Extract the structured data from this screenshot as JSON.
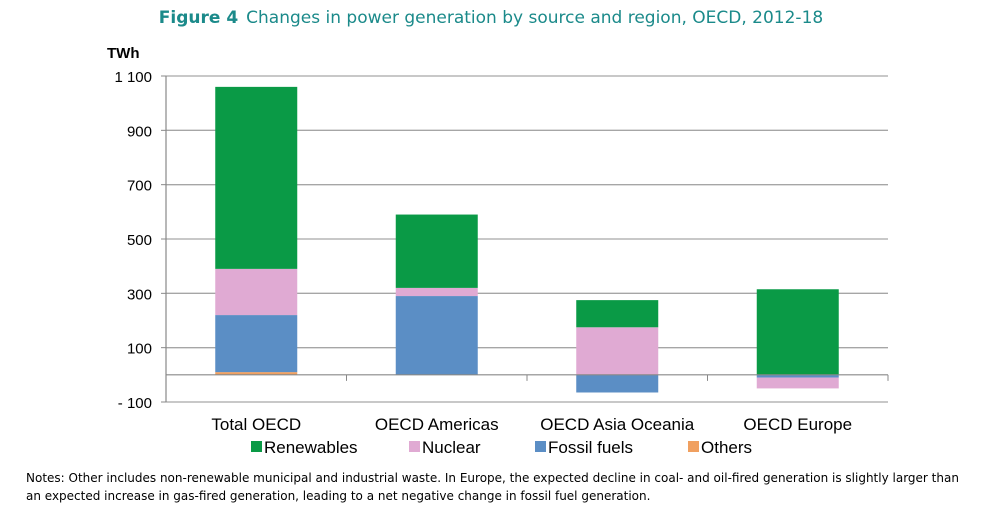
{
  "figure": {
    "number": "Figure 4",
    "title": "Changes in power generation by source and region, OECD, 2012-18"
  },
  "notes": "Notes: Other includes non-renewable municipal and industrial waste. In Europe, the expected decline in coal- and oil-fired generation is slightly larger than an expected increase in gas-fired generation, leading to a net negative change in fossil fuel generation.",
  "colors": {
    "renewables": "#0a9a46",
    "nuclear": "#e0aad3",
    "fossil": "#5b8ec5",
    "others": "#f0a060"
  },
  "chart_data": {
    "type": "bar",
    "stacked": true,
    "ylabel": "TWh",
    "ylim": [
      -100,
      1100
    ],
    "yticks": [
      -100,
      100,
      300,
      500,
      700,
      900,
      1100
    ],
    "ytick_labels": [
      "- 100",
      "100",
      "300",
      "500",
      "700",
      "900",
      "1 100"
    ],
    "grid": true,
    "legend_position": "bottom",
    "categories": [
      "Total OECD",
      "OECD Americas",
      "OECD Asia Oceania",
      "OECD Europe"
    ],
    "series": [
      {
        "name": "Renewables",
        "values": [
          670,
          270,
          100,
          315
        ]
      },
      {
        "name": "Nuclear",
        "values": [
          170,
          30,
          175,
          -40
        ]
      },
      {
        "name": "Fossil fuels",
        "values": [
          210,
          290,
          -65,
          -10
        ]
      },
      {
        "name": "Others",
        "values": [
          10,
          0,
          0,
          0
        ]
      }
    ]
  }
}
